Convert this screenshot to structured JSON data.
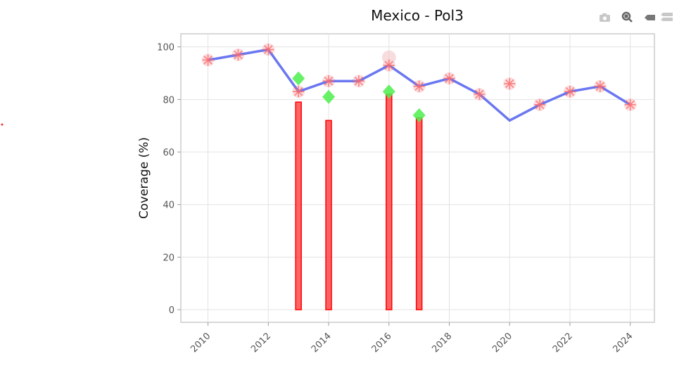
{
  "chart_data": {
    "type": "line",
    "title": "Mexico - Pol3",
    "xlabel": "",
    "ylabel": "Coverage (%)",
    "xlim": [
      2009.1,
      2024.8
    ],
    "ylim": [
      -4.8,
      105
    ],
    "grid": true,
    "x_ticks": [
      "2010",
      "2012",
      "2014",
      "2016",
      "2018",
      "2020",
      "2022",
      "2024"
    ],
    "y_ticks": [
      "0",
      "20",
      "40",
      "60",
      "80",
      "100"
    ],
    "series": [
      {
        "name": "line",
        "type": "line",
        "color": "#5a68f0",
        "x": [
          2010,
          2011,
          2012,
          2013,
          2014,
          2015,
          2016,
          2017,
          2018,
          2019,
          2020,
          2021,
          2022,
          2023,
          2024
        ],
        "y": [
          95,
          97,
          99,
          83,
          87,
          87,
          93,
          85,
          88,
          82,
          72,
          78,
          83,
          85,
          78
        ]
      },
      {
        "name": "asterisks",
        "type": "scatter",
        "color": "#ff6b6b",
        "x": [
          2010,
          2011,
          2012,
          2013,
          2014,
          2015,
          2016,
          2017,
          2018,
          2019,
          2020,
          2021,
          2022,
          2023,
          2024
        ],
        "y": [
          95,
          97,
          99,
          83,
          87,
          87,
          93,
          85,
          88,
          82,
          86,
          78,
          83,
          85,
          78
        ]
      },
      {
        "name": "circle",
        "type": "scatter",
        "color": "#f4c6c9",
        "x": [
          2016
        ],
        "y": [
          96
        ]
      },
      {
        "name": "diamonds",
        "type": "scatter",
        "color": "#4cef4c",
        "x": [
          2013,
          2014,
          2016,
          2017
        ],
        "y": [
          88,
          81,
          83,
          74
        ]
      },
      {
        "name": "bars",
        "type": "bar",
        "color": "#ff4d4d",
        "x": [
          2013,
          2014,
          2016,
          2017
        ],
        "y": [
          79,
          72,
          82,
          73
        ]
      }
    ]
  },
  "modebar": [
    "camera-icon",
    "zoom-icon",
    "hover-closest-icon",
    "hover-compare-icon"
  ]
}
